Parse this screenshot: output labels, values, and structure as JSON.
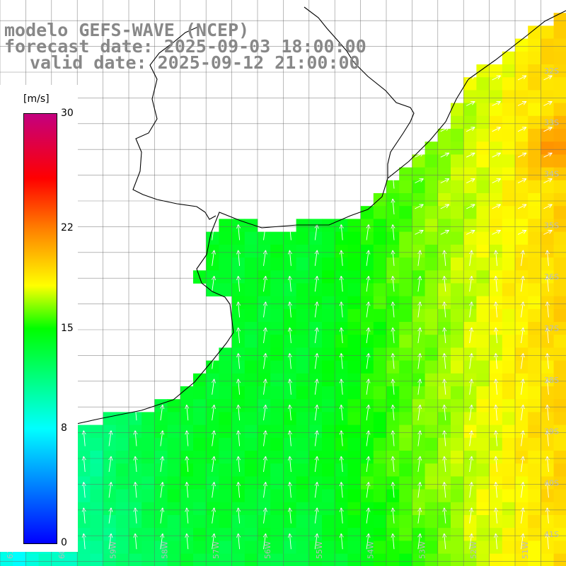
{
  "header": {
    "model": "modelo GEFS-WAVE (NCEP)",
    "forecast": "forecast date: 2025-09-03 18:00:00",
    "valid": "valid date: 2025-09-12 21:00:00"
  },
  "colorbar": {
    "unit": "[m/s]",
    "min": 0,
    "max": 30,
    "ticks": [
      "30",
      "22",
      "15",
      "8",
      "0"
    ],
    "tick_values": [
      30,
      22,
      15,
      8,
      0
    ],
    "stops": [
      {
        "v": 0,
        "color": "#0000ff"
      },
      {
        "v": 8,
        "color": "#00ffff"
      },
      {
        "v": 15,
        "color": "#00ff00"
      },
      {
        "v": 18,
        "color": "#ffff00"
      },
      {
        "v": 22,
        "color": "#ff7f00"
      },
      {
        "v": 25.5,
        "color": "#ff0000"
      },
      {
        "v": 30,
        "color": "#c4007f"
      }
    ]
  },
  "lat_labels": [
    "32S",
    "33S",
    "34S",
    "35S",
    "36S",
    "37S",
    "38S",
    "39S",
    "40S",
    "41S"
  ],
  "lon_labels": [
    "61W",
    "60W",
    "59W",
    "58W",
    "57W",
    "56W",
    "55W",
    "54W",
    "53W",
    "52W",
    "51W"
  ],
  "extent": {
    "lon_min": -61.3,
    "lon_max": -50.3,
    "lat_min": -41.2,
    "lat_max": -30.3
  },
  "wind": {
    "direction": "northward",
    "typical_speed_ms": 13
  }
}
